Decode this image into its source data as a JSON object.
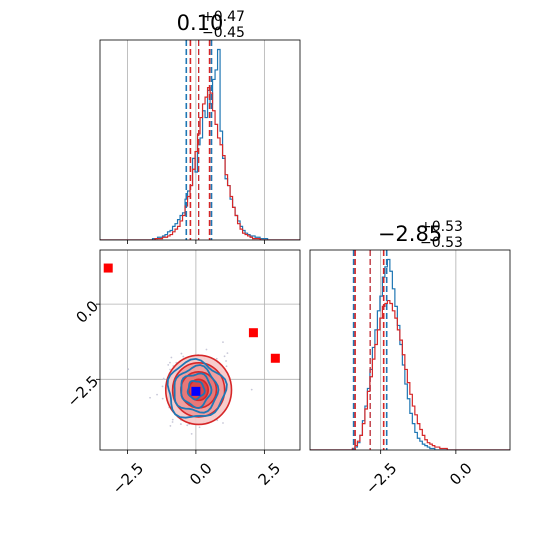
{
  "colors": {
    "posterior_a": "#1f77b4",
    "posterior_b": "#d62728",
    "truth_markers": "#ff0000",
    "best_fit_marker": "#0000ff",
    "grid": "#b0b0b0",
    "scatter": "#c8c8d8"
  },
  "chart_data": [
    {
      "type": "histogram",
      "panel": "top-left",
      "title": {
        "value": "0.10",
        "plus": "+0.47",
        "minus": "−0.45"
      },
      "xlim": [
        -3.5,
        3.8
      ],
      "grid": true,
      "x_ticks": [
        -2.5,
        0.0,
        2.5
      ],
      "series": [
        {
          "name": "",
          "color": "#1f77b4",
          "bin_start": -3.5,
          "bin_width": 0.0913,
          "counts": [
            0,
            0,
            0,
            0,
            0,
            0,
            0,
            0,
            0,
            0,
            0,
            0,
            0,
            0,
            0,
            0,
            0,
            0,
            0,
            0,
            0,
            1,
            1,
            2,
            2,
            3,
            4,
            6,
            7,
            10,
            12,
            15,
            18,
            20,
            30,
            36,
            40,
            60,
            50,
            70,
            75,
            95,
            90,
            110,
            100,
            118,
            125,
            140,
            80,
            60,
            45,
            40,
            30,
            24,
            18,
            14,
            10,
            7,
            5,
            4,
            3,
            3,
            2,
            2,
            1,
            1,
            1,
            0,
            0,
            0,
            0,
            0,
            0,
            0,
            0,
            0,
            0,
            0,
            0,
            0
          ],
          "quantiles": [
            -0.35,
            0.1,
            0.57
          ]
        },
        {
          "name": "",
          "color": "#d62728",
          "bin_start": -3.5,
          "bin_width": 0.0913,
          "counts": [
            0,
            0,
            0,
            0,
            0,
            0,
            0,
            0,
            0,
            0,
            0,
            0,
            0,
            0,
            0,
            0,
            0,
            0,
            0,
            0,
            0,
            0,
            1,
            1,
            1,
            2,
            2,
            3,
            4,
            6,
            8,
            10,
            14,
            18,
            25,
            32,
            40,
            52,
            65,
            78,
            90,
            100,
            105,
            112,
            108,
            95,
            85,
            75,
            70,
            62,
            48,
            40,
            32,
            24,
            18,
            12,
            8,
            5,
            4,
            3,
            2,
            1,
            1,
            1,
            0,
            0,
            0,
            0,
            0,
            0,
            0,
            0,
            0,
            0,
            0,
            0,
            0,
            0,
            0,
            0
          ],
          "quantiles": [
            -0.2,
            0.1,
            0.5
          ]
        }
      ]
    },
    {
      "type": "scatter",
      "panel": "bottom-left",
      "xlim": [
        -3.5,
        3.8
      ],
      "ylim": [
        -4.85,
        1.8
      ],
      "grid": true,
      "x_ticks": [
        -2.5,
        0.0,
        2.5
      ],
      "y_ticks": [
        -2.5,
        0.0
      ],
      "truth_points": [
        [
          -3.2,
          1.2
        ],
        [
          2.1,
          -0.95
        ],
        [
          2.9,
          -1.8
        ]
      ],
      "best_fit_point": [
        0.0,
        -2.9
      ],
      "contours": [
        {
          "color": "#d62728",
          "center": [
            0.1,
            -2.85
          ],
          "radii": [
            [
              0.35,
              0.35
            ],
            [
              0.65,
              0.6
            ],
            [
              0.95,
              0.9
            ],
            [
              1.2,
              1.15
            ]
          ]
        },
        {
          "color": "#1f77b4",
          "center": [
            0.0,
            -2.85
          ],
          "radii": [
            [
              0.3,
              0.3
            ],
            [
              0.55,
              0.55
            ],
            [
              0.8,
              0.75
            ],
            [
              1.05,
              0.95
            ]
          ]
        }
      ]
    },
    {
      "type": "histogram",
      "panel": "bottom-right",
      "title": {
        "value": "−2.85",
        "plus": "+0.53",
        "minus": "−0.53"
      },
      "xlim": [
        -4.85,
        1.8
      ],
      "grid": true,
      "x_ticks": [
        -2.5,
        0.0
      ],
      "series": [
        {
          "name": "",
          "color": "#1f77b4",
          "bin_start": -4.85,
          "bin_width": 0.083,
          "counts": [
            0,
            0,
            0,
            0,
            0,
            0,
            0,
            0,
            0,
            0,
            0,
            0,
            0,
            0,
            0,
            0,
            0,
            1,
            2,
            5,
            10,
            20,
            30,
            42,
            55,
            70,
            82,
            95,
            105,
            118,
            125,
            130,
            122,
            110,
            98,
            85,
            72,
            58,
            45,
            35,
            25,
            18,
            12,
            8,
            6,
            4,
            3,
            2,
            1,
            1,
            0,
            0,
            0,
            0,
            0,
            0,
            0,
            0,
            0,
            0,
            0,
            0,
            0,
            0,
            0,
            0,
            0,
            0,
            0,
            0,
            0,
            0,
            0,
            0,
            0,
            0,
            0,
            0,
            0,
            0
          ],
          "quantiles": [
            -3.4,
            -2.85,
            -2.3
          ]
        },
        {
          "name": "",
          "color": "#d62728",
          "bin_start": -4.85,
          "bin_width": 0.083,
          "counts": [
            0,
            0,
            0,
            0,
            0,
            0,
            0,
            0,
            0,
            0,
            0,
            0,
            0,
            0,
            0,
            0,
            0,
            1,
            3,
            6,
            10,
            18,
            28,
            40,
            50,
            62,
            72,
            82,
            90,
            98,
            100,
            102,
            100,
            95,
            90,
            82,
            75,
            65,
            55,
            46,
            38,
            30,
            24,
            18,
            14,
            10,
            7,
            5,
            4,
            3,
            2,
            2,
            1,
            1,
            1,
            0,
            0,
            0,
            0,
            0,
            0,
            0,
            0,
            0,
            0,
            0,
            0,
            0,
            0,
            0,
            0,
            0,
            0,
            0,
            0,
            0,
            0,
            0,
            0,
            0
          ],
          "quantiles": [
            -3.35,
            -2.85,
            -2.4
          ]
        }
      ]
    }
  ]
}
